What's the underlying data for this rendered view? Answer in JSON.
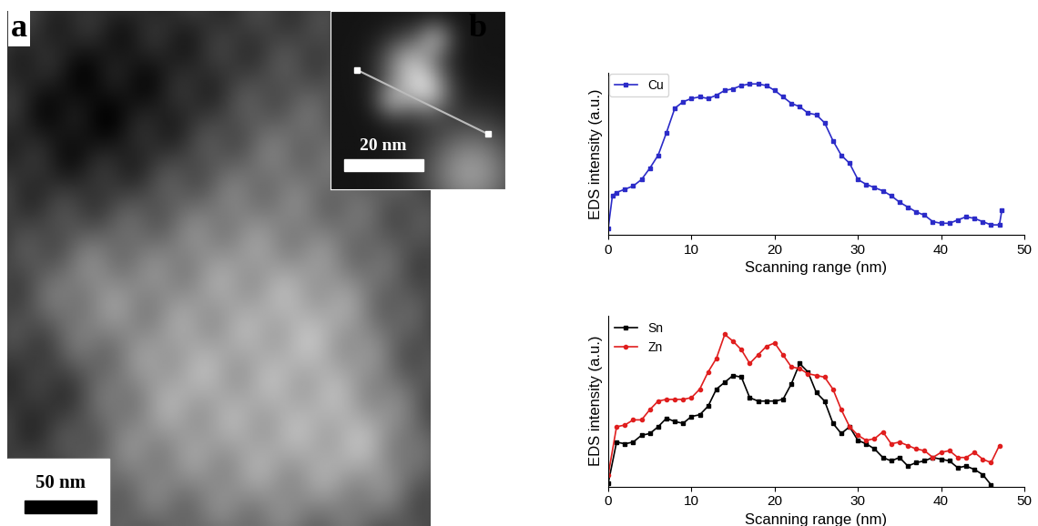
{
  "panel_labels": [
    "a",
    "b"
  ],
  "image": {
    "scale_bar": "50 nm",
    "inset_scale_bar": "20 nm"
  },
  "chart_data": [
    {
      "type": "line",
      "x_label": "Scanning range (nm)",
      "y_label": "EDS intensity (a.u.)",
      "xlim": [
        0,
        50
      ],
      "xticks": [
        0,
        10,
        20,
        30,
        40,
        50
      ],
      "ylim": [
        0,
        100
      ],
      "tick_labels": "x",
      "legend": "upper left",
      "series": [
        {
          "name": "Cu",
          "color": "#2b2bc8",
          "marker": "square",
          "x": [
            0,
            0.5,
            1,
            2,
            3,
            4,
            5,
            6,
            7,
            8,
            9,
            10,
            11,
            12,
            13,
            14,
            15,
            16,
            17,
            18,
            19,
            20,
            21,
            22,
            23,
            24,
            25,
            26,
            27,
            28,
            29,
            30,
            31,
            32,
            33,
            34,
            35,
            36,
            37,
            38,
            39,
            40,
            41,
            42,
            43,
            44,
            45,
            46,
            47,
            47.3
          ],
          "values": [
            4,
            24,
            26,
            28,
            30,
            34,
            41,
            49,
            63,
            78,
            82,
            84,
            85,
            84,
            86,
            89,
            90,
            92,
            93,
            93,
            92,
            89,
            85,
            81,
            79,
            75,
            74,
            69,
            58,
            49,
            44,
            34,
            31,
            29,
            27,
            24,
            20,
            17,
            14,
            12,
            8,
            7,
            7,
            9,
            11,
            10,
            8,
            6,
            6,
            15
          ]
        }
      ]
    },
    {
      "type": "line",
      "x_label": "Scanning range (nm)",
      "y_label": "EDS intensity (a.u.)",
      "xlim": [
        0,
        50
      ],
      "xticks": [
        0,
        10,
        20,
        30,
        40,
        50
      ],
      "ylim": [
        0,
        100
      ],
      "tick_labels": "x",
      "legend": "upper left",
      "series": [
        {
          "name": "Sn",
          "color": "#000000",
          "marker": "square",
          "x": [
            0,
            1,
            2,
            3,
            4,
            5,
            6,
            7,
            8,
            9,
            10,
            11,
            12,
            13,
            14,
            15,
            16,
            17,
            18,
            19,
            20,
            21,
            22,
            23,
            24,
            25,
            26,
            27,
            28,
            29,
            30,
            31,
            32,
            33,
            34,
            35,
            36,
            37,
            38,
            39,
            40,
            41,
            42,
            43,
            44,
            45,
            46
          ],
          "values": [
            2,
            26,
            25,
            26,
            30,
            31,
            35,
            40,
            38,
            37,
            41,
            42,
            47,
            57,
            61,
            65,
            64,
            52,
            50,
            50,
            50,
            51,
            60,
            72,
            67,
            55,
            50,
            37,
            31,
            35,
            27,
            25,
            22,
            17,
            15,
            17,
            12,
            14,
            15,
            17,
            16,
            15,
            11,
            12,
            10,
            7,
            1
          ]
        },
        {
          "name": "Zn",
          "color": "#e01e1e",
          "marker": "circle",
          "x": [
            0,
            1,
            2,
            3,
            4,
            5,
            6,
            7,
            8,
            9,
            10,
            11,
            12,
            13,
            14,
            15,
            16,
            17,
            18,
            19,
            20,
            21,
            22,
            23,
            24,
            25,
            26,
            27,
            28,
            29,
            30,
            31,
            32,
            33,
            34,
            35,
            36,
            37,
            38,
            39,
            40,
            41,
            42,
            43,
            44,
            45,
            46,
            47
          ],
          "values": [
            7,
            35,
            36,
            39,
            39,
            45,
            50,
            51,
            51,
            51,
            52,
            57,
            67,
            75,
            89,
            85,
            80,
            72,
            77,
            82,
            84,
            77,
            70,
            69,
            66,
            65,
            64,
            57,
            45,
            35,
            30,
            27,
            28,
            32,
            25,
            26,
            24,
            22,
            21,
            17,
            20,
            21,
            17,
            17,
            20,
            16,
            14,
            24
          ]
        }
      ]
    }
  ]
}
